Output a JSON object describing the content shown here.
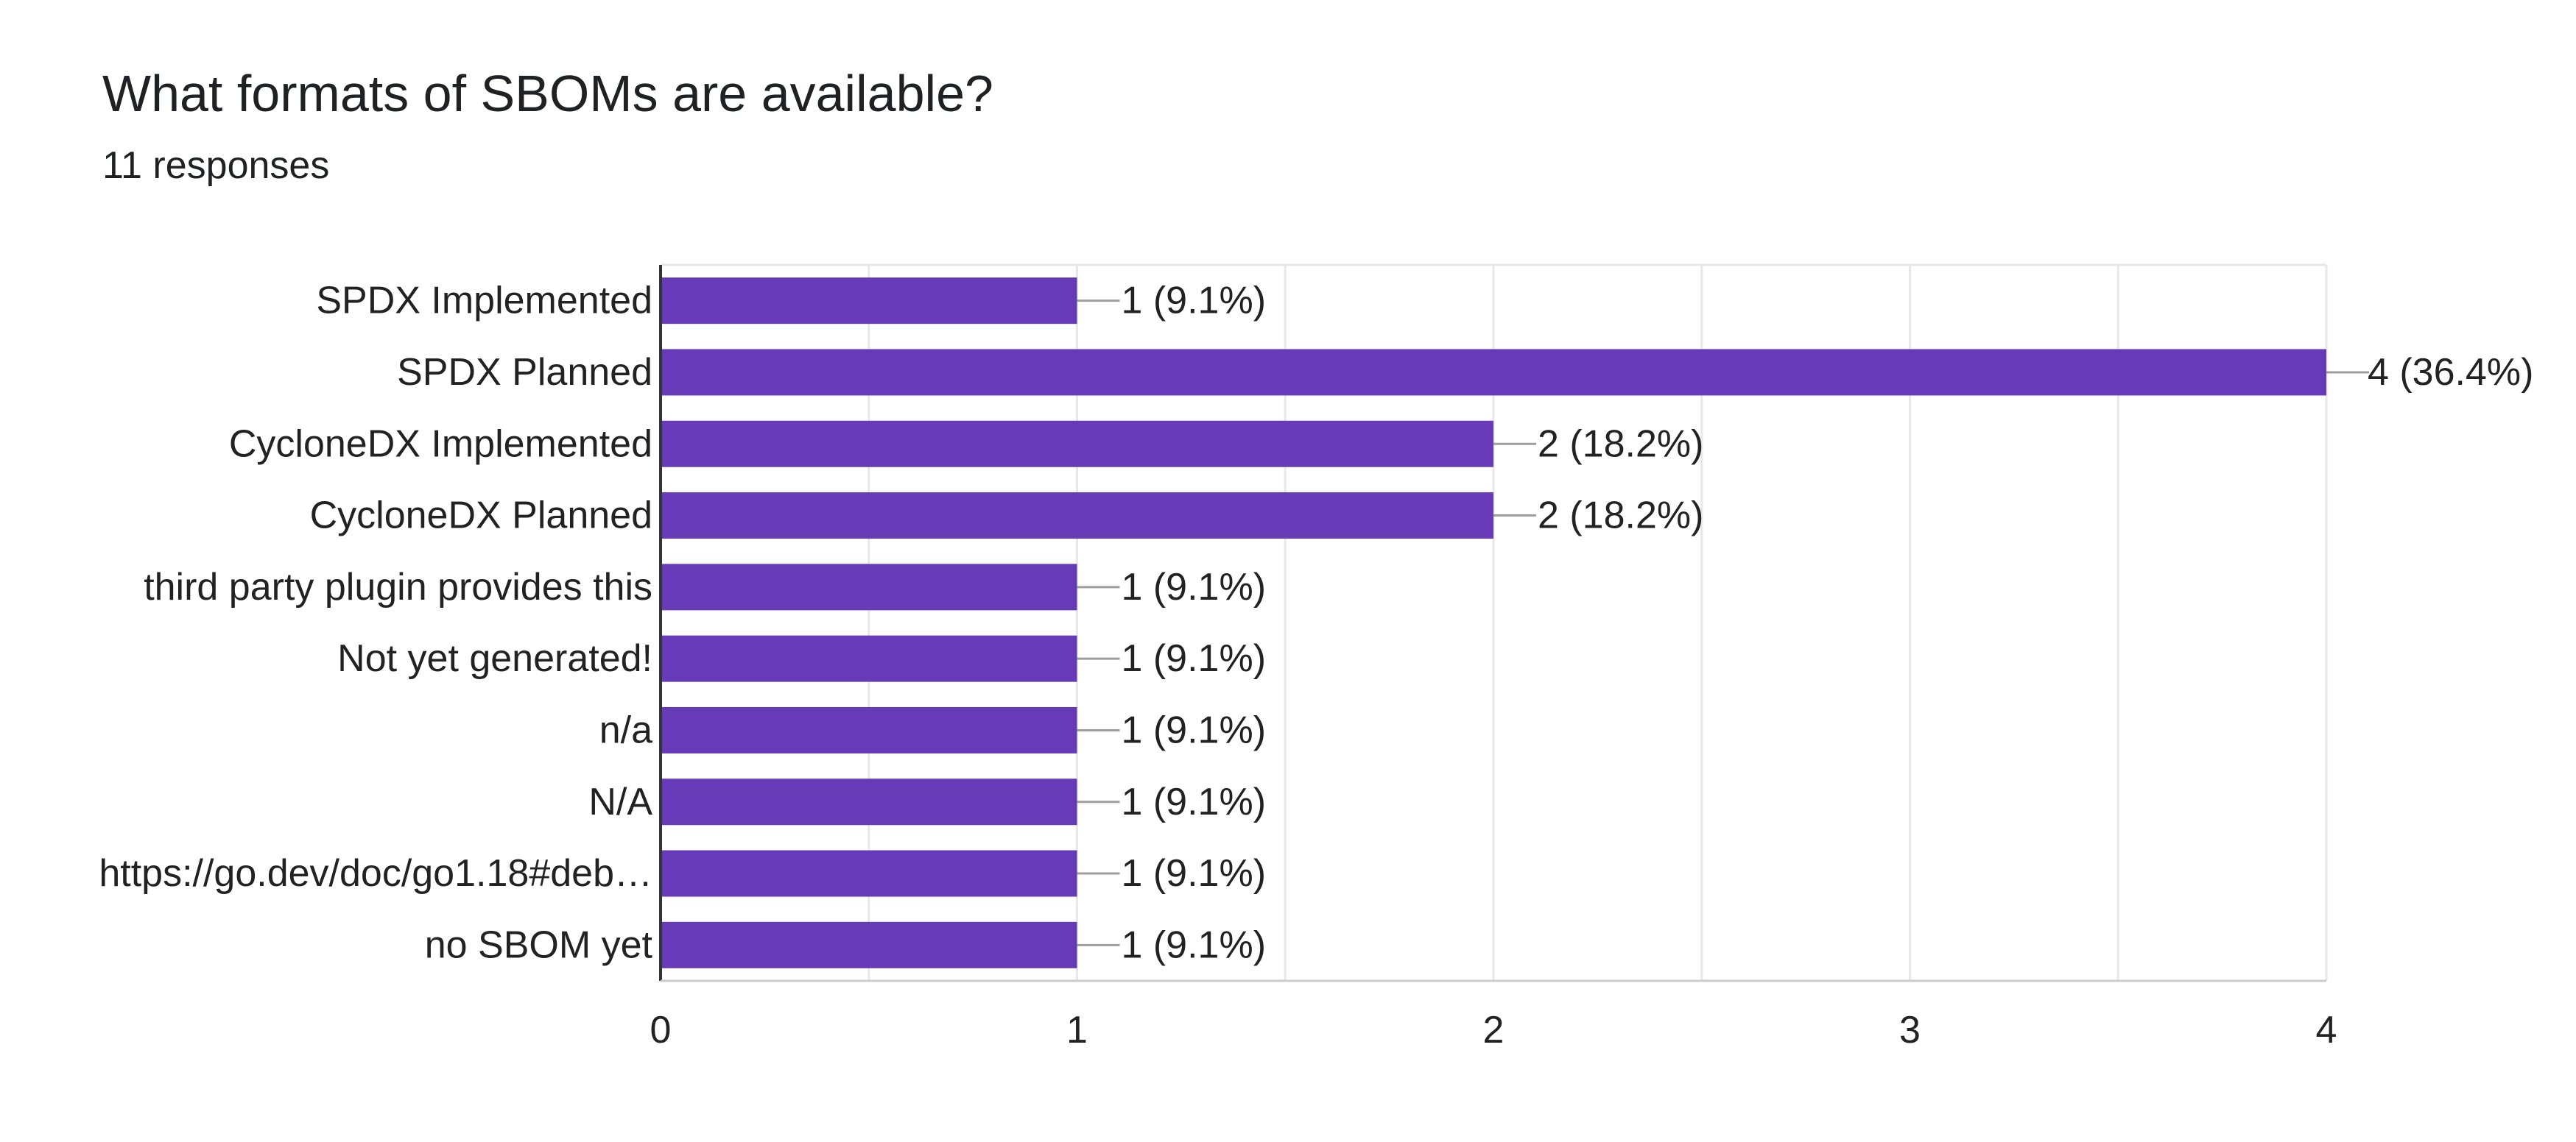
{
  "title": "What formats of SBOMs are available?",
  "subtitle": "11 responses",
  "colors": {
    "bar": "#673AB7",
    "axis": "#333333",
    "grid": "#E8E8E8",
    "leader": "#9E9E9E",
    "text": "#222222"
  },
  "chart_data": {
    "type": "bar",
    "orientation": "horizontal",
    "categories": [
      "SPDX Implemented",
      "SPDX Planned",
      "CycloneDX Implemented",
      "CycloneDX Planned",
      "third party plugin provides this",
      "Not yet generated!",
      "n/a",
      "N/A",
      "https://go.dev/doc/go1.18#deb…",
      "no SBOM yet"
    ],
    "values": [
      1,
      4,
      2,
      2,
      1,
      1,
      1,
      1,
      1,
      1
    ],
    "data_labels": [
      "1 (9.1%)",
      "4 (36.4%)",
      "2 (18.2%)",
      "2 (18.2%)",
      "1 (9.1%)",
      "1 (9.1%)",
      "1 (9.1%)",
      "1 (9.1%)",
      "1 (9.1%)",
      "1 (9.1%)"
    ],
    "xlim": [
      0,
      4
    ],
    "xticks": [
      "0",
      "1",
      "2",
      "3",
      "4"
    ],
    "grid": true,
    "legend": "none"
  }
}
